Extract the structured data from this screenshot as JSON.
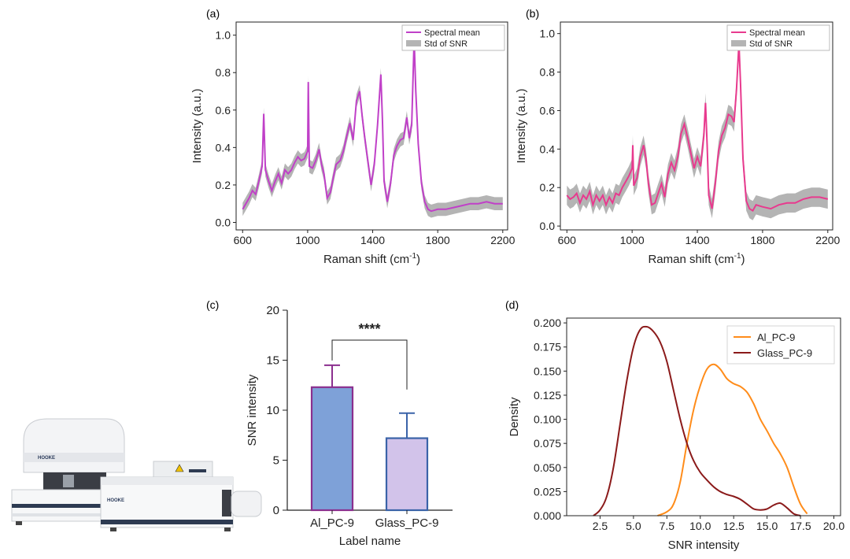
{
  "panel_labels": {
    "a": "(a)",
    "b": "(b)",
    "c": "(c)",
    "d": "(d)"
  },
  "instrument": {
    "brand_text": "HOOKE",
    "brand_text_2": "HOOKE"
  },
  "colors": {
    "a_mean": "#c040c8",
    "std_band": "#b4b4b4",
    "b_mean": "#e83a8e",
    "bar_al_fill": "#7ea1d8",
    "bar_al_edge": "#8b2f8e",
    "bar_glass_fill": "#d2c3ea",
    "bar_glass_edge": "#3a63a8",
    "kde_al": "#ff8c1a",
    "kde_glass": "#8b1a1a"
  },
  "chart_data": [
    {
      "id": "a",
      "type": "line",
      "xlabel": "Raman shift (cm",
      "xlabel_sup": "-1",
      "xlabel_close": ")",
      "ylabel": "Intensity (a.u.)",
      "xlim": [
        560,
        2230
      ],
      "ylim": [
        -0.04,
        1.07
      ],
      "xticks": [
        600,
        1000,
        1400,
        1800,
        2200
      ],
      "yticks": [
        0.0,
        0.2,
        0.4,
        0.6,
        0.8,
        1.0
      ],
      "ytick_labels": [
        "0.0",
        "0.2",
        "0.4",
        "0.6",
        "0.8",
        "1.0"
      ],
      "legend": {
        "position": "top-right",
        "entries": [
          "Spectral mean",
          "Std of SNR"
        ]
      },
      "series": [
        {
          "name": "Spectral mean",
          "std": 0.035,
          "x": [
            600,
            620,
            640,
            660,
            680,
            700,
            720,
            730,
            740,
            760,
            780,
            800,
            820,
            840,
            860,
            880,
            900,
            920,
            940,
            960,
            980,
            1000,
            1004,
            1010,
            1030,
            1050,
            1070,
            1085,
            1100,
            1120,
            1140,
            1160,
            1175,
            1200,
            1220,
            1240,
            1260,
            1280,
            1300,
            1320,
            1335,
            1350,
            1370,
            1390,
            1410,
            1430,
            1450,
            1460,
            1470,
            1490,
            1510,
            1530,
            1550,
            1570,
            1590,
            1610,
            1625,
            1640,
            1655,
            1665,
            1680,
            1700,
            1720,
            1740,
            1760,
            1800,
            1850,
            1900,
            1950,
            2000,
            2050,
            2100,
            2150,
            2200
          ],
          "y": [
            0.07,
            0.1,
            0.13,
            0.17,
            0.15,
            0.22,
            0.3,
            0.58,
            0.28,
            0.22,
            0.17,
            0.22,
            0.26,
            0.21,
            0.28,
            0.26,
            0.28,
            0.32,
            0.35,
            0.33,
            0.34,
            0.38,
            0.75,
            0.3,
            0.29,
            0.33,
            0.39,
            0.31,
            0.26,
            0.13,
            0.16,
            0.25,
            0.31,
            0.33,
            0.38,
            0.46,
            0.53,
            0.44,
            0.65,
            0.7,
            0.57,
            0.46,
            0.33,
            0.2,
            0.31,
            0.52,
            0.79,
            0.55,
            0.22,
            0.11,
            0.21,
            0.36,
            0.41,
            0.44,
            0.45,
            0.56,
            0.45,
            0.52,
            0.98,
            0.7,
            0.42,
            0.21,
            0.11,
            0.07,
            0.06,
            0.07,
            0.07,
            0.08,
            0.09,
            0.1,
            0.1,
            0.11,
            0.1,
            0.1
          ]
        }
      ]
    },
    {
      "id": "b",
      "type": "line",
      "xlabel": "Raman shift (cm",
      "xlabel_sup": "-1",
      "xlabel_close": ")",
      "ylabel": "Intensity (a.u.)",
      "xlim": [
        560,
        2230
      ],
      "ylim": [
        -0.02,
        1.06
      ],
      "xticks": [
        600,
        1000,
        1400,
        1800,
        2200
      ],
      "yticks": [
        0.0,
        0.2,
        0.4,
        0.6,
        0.8,
        1.0
      ],
      "ytick_labels": [
        "0.0",
        "0.2",
        "0.4",
        "0.6",
        "0.8",
        "1.0"
      ],
      "legend": {
        "position": "top-right",
        "entries": [
          "Spectral mean",
          "Std of SNR"
        ]
      },
      "series": [
        {
          "name": "Spectral mean",
          "std": 0.05,
          "x": [
            600,
            620,
            640,
            660,
            680,
            700,
            720,
            740,
            760,
            780,
            800,
            820,
            840,
            860,
            880,
            900,
            920,
            940,
            960,
            980,
            1000,
            1004,
            1010,
            1030,
            1050,
            1070,
            1085,
            1100,
            1120,
            1140,
            1160,
            1180,
            1200,
            1220,
            1240,
            1260,
            1280,
            1300,
            1320,
            1340,
            1360,
            1380,
            1400,
            1420,
            1440,
            1450,
            1460,
            1470,
            1490,
            1510,
            1530,
            1550,
            1570,
            1590,
            1610,
            1625,
            1640,
            1655,
            1665,
            1680,
            1700,
            1720,
            1740,
            1760,
            1800,
            1850,
            1900,
            1950,
            2000,
            2050,
            2100,
            2150,
            2200
          ],
          "y": [
            0.16,
            0.14,
            0.15,
            0.17,
            0.12,
            0.16,
            0.14,
            0.18,
            0.11,
            0.16,
            0.13,
            0.16,
            0.11,
            0.15,
            0.12,
            0.17,
            0.16,
            0.2,
            0.23,
            0.26,
            0.3,
            0.42,
            0.21,
            0.25,
            0.36,
            0.42,
            0.35,
            0.22,
            0.11,
            0.12,
            0.17,
            0.22,
            0.15,
            0.27,
            0.33,
            0.29,
            0.36,
            0.48,
            0.53,
            0.46,
            0.38,
            0.3,
            0.36,
            0.31,
            0.47,
            0.64,
            0.42,
            0.16,
            0.09,
            0.22,
            0.39,
            0.47,
            0.51,
            0.58,
            0.57,
            0.54,
            0.71,
            0.95,
            0.74,
            0.35,
            0.13,
            0.09,
            0.08,
            0.11,
            0.1,
            0.09,
            0.11,
            0.12,
            0.12,
            0.14,
            0.15,
            0.15,
            0.14
          ]
        }
      ]
    },
    {
      "id": "c",
      "type": "bar",
      "xlabel": "Label name",
      "ylabel": "SNR intensity",
      "categories": [
        "Al_PC-9",
        "Glass_PC-9"
      ],
      "values": [
        12.3,
        7.2
      ],
      "errors": [
        2.2,
        2.5
      ],
      "ylim": [
        0,
        20
      ],
      "yticks": [
        0,
        5,
        10,
        15,
        20
      ],
      "ytick_labels": [
        "0",
        "5",
        "10",
        "15",
        "20"
      ],
      "annotation": "****"
    },
    {
      "id": "d",
      "type": "line",
      "xlabel": "SNR intensity",
      "ylabel": "Density",
      "xlim": [
        0,
        20.5
      ],
      "ylim": [
        0,
        0.205
      ],
      "xticks": [
        2.5,
        5.0,
        7.5,
        10.0,
        12.5,
        15.0,
        17.5,
        20.0
      ],
      "xtick_labels": [
        "2.5",
        "5.0",
        "7.5",
        "10.0",
        "12.5",
        "15.0",
        "17.5",
        "20.0"
      ],
      "yticks": [
        0.0,
        0.025,
        0.05,
        0.075,
        0.1,
        0.125,
        0.15,
        0.175,
        0.2
      ],
      "ytick_labels": [
        "0.000",
        "0.025",
        "0.050",
        "0.075",
        "0.100",
        "0.125",
        "0.150",
        "0.175",
        "0.200"
      ],
      "legend": {
        "position": "top-right",
        "entries": [
          "Al_PC-9",
          "Glass_PC-9"
        ]
      },
      "series": [
        {
          "name": "Al_PC-9",
          "x": [
            6.8,
            7.5,
            8.0,
            8.5,
            9.0,
            9.5,
            10.0,
            10.5,
            11.0,
            11.5,
            12.0,
            12.5,
            13.0,
            13.5,
            14.0,
            14.5,
            15.0,
            15.5,
            16.0,
            16.5,
            17.0,
            17.5,
            18.0
          ],
          "y": [
            0.0,
            0.004,
            0.012,
            0.035,
            0.075,
            0.11,
            0.135,
            0.152,
            0.157,
            0.152,
            0.142,
            0.137,
            0.134,
            0.128,
            0.116,
            0.1,
            0.088,
            0.075,
            0.064,
            0.05,
            0.03,
            0.012,
            0.002
          ]
        },
        {
          "name": "Glass_PC-9",
          "x": [
            2.0,
            2.5,
            3.0,
            3.5,
            4.0,
            4.5,
            5.0,
            5.5,
            6.0,
            6.5,
            7.0,
            7.5,
            8.0,
            8.5,
            9.0,
            9.5,
            10.0,
            10.5,
            11.0,
            11.5,
            12.0,
            12.5,
            13.0,
            13.5,
            14.0,
            14.5,
            15.0,
            15.5,
            16.0,
            16.5,
            17.0,
            17.5
          ],
          "y": [
            0.0,
            0.006,
            0.02,
            0.05,
            0.095,
            0.14,
            0.175,
            0.193,
            0.196,
            0.191,
            0.18,
            0.16,
            0.13,
            0.1,
            0.075,
            0.057,
            0.045,
            0.037,
            0.03,
            0.025,
            0.022,
            0.02,
            0.017,
            0.012,
            0.007,
            0.006,
            0.007,
            0.011,
            0.013,
            0.008,
            0.002,
            0.0
          ]
        }
      ]
    }
  ]
}
